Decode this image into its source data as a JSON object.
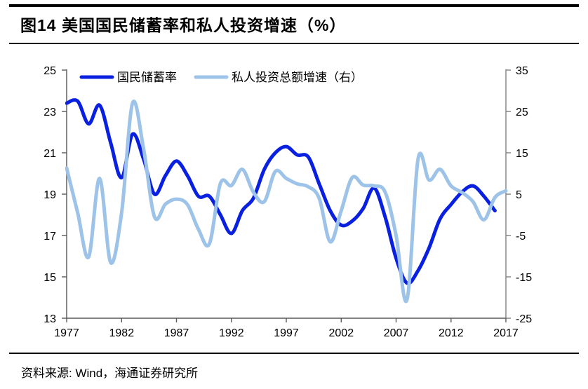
{
  "title": "图14 美国国民储蓄率和私人投资增速（%）",
  "source": "资料来源: Wind，海通证券研究所",
  "colors": {
    "savings_line": "#0a20e0",
    "investment_line": "#9dc3e8",
    "axis_left": "#595959",
    "axis_right": "#808080",
    "text": "#000000"
  },
  "legend": [
    {
      "label": "国民储蓄率"
    },
    {
      "label": "私人投资总额增速（右）"
    }
  ],
  "chart_data": {
    "type": "line",
    "title": "图14 美国国民储蓄率和私人投资增速（%）",
    "grid": false,
    "legend_position": "top-center",
    "x_axis": {
      "min": 1977,
      "max": 2017,
      "tick_labels": [
        "1977",
        "1982",
        "1987",
        "1992",
        "1997",
        "2002",
        "2007",
        "2012",
        "2017"
      ]
    },
    "left_axis": {
      "min": 13,
      "max": 25,
      "tick_labels": [
        "25",
        "23",
        "21",
        "19",
        "17",
        "15",
        "13"
      ]
    },
    "right_axis": {
      "min": -25,
      "max": 35,
      "tick_labels": [
        "35",
        "25",
        "15",
        "5",
        "-5",
        "-15",
        "-25"
      ]
    },
    "series": [
      {
        "name": "国民储蓄率",
        "axis": "left",
        "color": "#0a20e0",
        "x_start": 1977,
        "x": [
          1977,
          1978,
          1979,
          1980,
          1981,
          1982,
          1983,
          1984,
          1985,
          1986,
          1987,
          1988,
          1989,
          1990,
          1991,
          1992,
          1993,
          1994,
          1995,
          1996,
          1997,
          1998,
          1999,
          2000,
          2001,
          2002,
          2003,
          2004,
          2005,
          2006,
          2007,
          2008,
          2009,
          2010,
          2011,
          2012,
          2013,
          2014,
          2015,
          2016
        ],
        "values": [
          23.4,
          23.5,
          22.4,
          23.3,
          21.5,
          19.8,
          21.9,
          20.7,
          19.0,
          19.9,
          20.6,
          19.9,
          18.9,
          18.9,
          18.0,
          17.1,
          18.2,
          18.8,
          20.2,
          21.0,
          21.3,
          20.9,
          20.8,
          19.5,
          18.2,
          17.5,
          17.7,
          18.3,
          19.3,
          17.9,
          15.9,
          14.7,
          15.3,
          16.4,
          17.8,
          18.5,
          19.1,
          19.4,
          18.9,
          18.2
        ]
      },
      {
        "name": "私人投资总额增速（右）",
        "axis": "right",
        "color": "#9dc3e8",
        "x_start": 1977,
        "x": [
          1977,
          1978,
          1979,
          1980,
          1981,
          1982,
          1983,
          1984,
          1985,
          1986,
          1987,
          1988,
          1989,
          1990,
          1991,
          1992,
          1993,
          1994,
          1995,
          1996,
          1997,
          1998,
          1999,
          2000,
          2001,
          2002,
          2003,
          2004,
          2005,
          2006,
          2007,
          2008,
          2009,
          2010,
          2011,
          2012,
          2013,
          2014,
          2015,
          2016,
          2017
        ],
        "values": [
          11.3,
          0.5,
          -10.2,
          8.8,
          -11.5,
          0.5,
          27.0,
          16.0,
          -0.5,
          2.6,
          3.8,
          2.5,
          -3.5,
          -7.0,
          7.6,
          7.1,
          11.0,
          5.5,
          3.2,
          10.5,
          8.8,
          7.5,
          6.8,
          4.0,
          -6.5,
          1.0,
          9.0,
          7.2,
          7.0,
          5.5,
          -5.0,
          -20.5,
          13.5,
          8.4,
          11.0,
          7.0,
          5.4,
          3.2,
          -1.2,
          4.2,
          5.8
        ]
      }
    ]
  }
}
